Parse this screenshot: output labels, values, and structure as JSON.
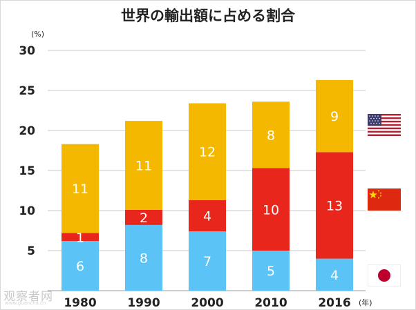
{
  "chart_data": {
    "type": "bar",
    "stacked": true,
    "title": "世界の輸出額に占める割合",
    "y_unit_label": "(%)",
    "x_unit_label": "(年)",
    "categories": [
      "1980",
      "1990",
      "2000",
      "2010",
      "2016"
    ],
    "ylim": [
      0,
      30
    ],
    "yticks": [
      "5",
      "10",
      "15",
      "20",
      "25",
      "30"
    ],
    "grid": true,
    "series": [
      {
        "values": [
          6,
          8,
          7,
          5,
          4
        ],
        "plot_values": [
          6.2,
          8.2,
          7.4,
          5.0,
          4.0
        ],
        "color": "#5bc3f5"
      },
      {
        "values": [
          1,
          2,
          4,
          10,
          13
        ],
        "plot_values": [
          1.0,
          1.9,
          3.9,
          10.3,
          13.3
        ],
        "color": "#e8261c"
      },
      {
        "values": [
          11,
          11,
          12,
          8,
          9
        ],
        "plot_values": [
          11.1,
          11.1,
          12.1,
          8.3,
          9.0
        ],
        "color": "#f5b800"
      }
    ]
  },
  "flags": [
    {
      "name": "us-flag-icon",
      "colors": {
        "stripe": "#b22234",
        "canton": "#3c3b6e"
      }
    },
    {
      "name": "china-flag-icon",
      "colors": {
        "field": "#de2910",
        "star": "#ffde00"
      }
    },
    {
      "name": "japan-flag-icon",
      "colors": {
        "field": "#ffffff",
        "disc": "#bc002d"
      }
    }
  ],
  "watermark": {
    "text": "观察者网",
    "subtext": "www.guancha.cn"
  }
}
